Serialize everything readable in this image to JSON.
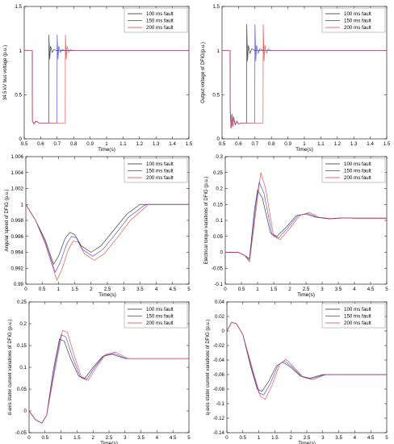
{
  "legend_labels": [
    "100 ms fault",
    "150 ms fault",
    "200 ms fault"
  ],
  "colors": {
    "series_100": "#222222",
    "series_150": "#3a3ad8",
    "series_200": "#e03a3a",
    "axes": "#000000",
    "legend_border": "#888888",
    "background": "#ffffff"
  },
  "chart_data": [
    {
      "id": "bus-voltage",
      "type": "line",
      "ylabel": "34.5 kV bus voltage (p.u.)",
      "xlabel": "Time(s)",
      "xlim": [
        0.5,
        1.5
      ],
      "ylim": [
        0,
        1.5
      ],
      "xticks": [
        0.5,
        0.6,
        0.7,
        0.8,
        0.9,
        1.0,
        1.1,
        1.2,
        1.3,
        1.4,
        1.5
      ],
      "xtick_labels": [
        "0.5",
        "0.6",
        "0.7",
        "0.8",
        "0.9",
        "1",
        "1.1",
        "1.2",
        "1.3",
        "1.4",
        "1.5"
      ],
      "yticks": [
        0,
        0.5,
        1,
        1.5
      ],
      "ytick_labels": [
        "0",
        "0.5",
        "1",
        "1.5"
      ],
      "legend": "top-right",
      "series": [
        {
          "name": "100 ms fault",
          "x": [
            0.5,
            0.549,
            0.55,
            0.56,
            0.57,
            0.59,
            0.62,
            0.649,
            0.65,
            0.655,
            0.66,
            0.67,
            0.68,
            0.7,
            0.8,
            1.0,
            1.5
          ],
          "y": [
            1.0,
            1.0,
            0.2,
            0.17,
            0.2,
            0.18,
            0.18,
            0.18,
            1.18,
            0.9,
            1.05,
            0.98,
            1.01,
            1.0,
            1.0,
            1.0,
            1.0
          ]
        },
        {
          "name": "150 ms fault",
          "x": [
            0.5,
            0.549,
            0.55,
            0.56,
            0.57,
            0.59,
            0.65,
            0.699,
            0.7,
            0.705,
            0.71,
            0.72,
            0.73,
            0.75,
            0.85,
            1.0,
            1.5
          ],
          "y": [
            1.0,
            1.0,
            0.2,
            0.17,
            0.2,
            0.18,
            0.18,
            0.18,
            1.18,
            0.9,
            1.05,
            0.98,
            1.01,
            1.0,
            1.0,
            1.0,
            1.0
          ]
        },
        {
          "name": "200 ms fault",
          "x": [
            0.5,
            0.549,
            0.55,
            0.56,
            0.57,
            0.59,
            0.7,
            0.749,
            0.75,
            0.755,
            0.76,
            0.77,
            0.78,
            0.8,
            0.9,
            1.0,
            1.5
          ],
          "y": [
            1.0,
            1.0,
            0.2,
            0.17,
            0.2,
            0.18,
            0.18,
            0.18,
            1.18,
            0.9,
            1.05,
            0.98,
            1.01,
            1.0,
            1.0,
            1.0,
            1.0
          ]
        }
      ]
    },
    {
      "id": "output-voltage",
      "type": "line",
      "ylabel": "Output voltage of DFIG(p.u.)",
      "xlabel": "Time(s)",
      "xlim": [
        0.5,
        1.5
      ],
      "ylim": [
        0,
        1.5
      ],
      "xticks": [
        0.5,
        0.6,
        0.7,
        0.8,
        0.9,
        1.0,
        1.1,
        1.2,
        1.3,
        1.4,
        1.5
      ],
      "xtick_labels": [
        "0.5",
        "0.6",
        "0.7",
        "0.8",
        "0.9",
        "1",
        "1.1",
        "1.2",
        "1.3",
        "1.4",
        "1.5"
      ],
      "yticks": [
        0,
        0.5,
        1,
        1.5
      ],
      "ytick_labels": [
        "0",
        "0.5",
        "1",
        "1.5"
      ],
      "legend": "top-right",
      "series": [
        {
          "name": "100 ms fault",
          "x": [
            0.5,
            0.549,
            0.55,
            0.555,
            0.56,
            0.565,
            0.57,
            0.58,
            0.59,
            0.6,
            0.62,
            0.649,
            0.65,
            0.655,
            0.66,
            0.67,
            0.68,
            0.7,
            0.8,
            1.5
          ],
          "y": [
            1.0,
            1.0,
            0.3,
            0.12,
            0.28,
            0.14,
            0.25,
            0.16,
            0.2,
            0.17,
            0.18,
            0.18,
            1.3,
            0.88,
            1.06,
            0.97,
            1.02,
            1.0,
            1.0,
            1.0
          ]
        },
        {
          "name": "150 ms fault",
          "x": [
            0.5,
            0.549,
            0.55,
            0.555,
            0.56,
            0.565,
            0.57,
            0.58,
            0.59,
            0.6,
            0.62,
            0.699,
            0.7,
            0.705,
            0.71,
            0.72,
            0.73,
            0.75,
            0.85,
            1.5
          ],
          "y": [
            1.0,
            1.0,
            0.3,
            0.12,
            0.28,
            0.14,
            0.25,
            0.16,
            0.2,
            0.17,
            0.18,
            0.18,
            1.3,
            0.88,
            1.06,
            0.97,
            1.02,
            1.0,
            1.0,
            1.0
          ]
        },
        {
          "name": "200 ms fault",
          "x": [
            0.5,
            0.549,
            0.55,
            0.555,
            0.56,
            0.565,
            0.57,
            0.58,
            0.59,
            0.6,
            0.62,
            0.749,
            0.75,
            0.755,
            0.76,
            0.77,
            0.78,
            0.8,
            0.9,
            1.5
          ],
          "y": [
            1.0,
            1.0,
            0.3,
            0.12,
            0.28,
            0.14,
            0.25,
            0.16,
            0.2,
            0.17,
            0.18,
            0.18,
            1.3,
            0.88,
            1.06,
            0.97,
            1.02,
            1.0,
            1.0,
            1.0
          ]
        }
      ]
    },
    {
      "id": "angular-speed",
      "type": "line",
      "ylabel": "Angular speed of DFIG (p.u.)",
      "xlabel": "Time(s)",
      "xlim": [
        0,
        5
      ],
      "ylim": [
        0.99,
        1.006
      ],
      "xticks": [
        0,
        0.5,
        1,
        1.5,
        2,
        2.5,
        3,
        3.5,
        4,
        4.5,
        5
      ],
      "xtick_labels": [
        "0",
        "0.5",
        "1",
        "1.5",
        "2",
        "2.5",
        "3",
        "3.5",
        "4",
        "4.5",
        "5"
      ],
      "yticks": [
        0.99,
        0.992,
        0.994,
        0.996,
        0.998,
        1.0,
        1.002,
        1.004,
        1.006
      ],
      "ytick_labels": [
        "0.99",
        "0.992",
        "0.994",
        "0.996",
        "0.998",
        "1",
        "1.002",
        "1.004",
        "1.006"
      ],
      "legend": "top-right",
      "series": [
        {
          "name": "100 ms fault",
          "x": [
            0,
            0.3,
            0.6,
            0.85,
            1.0,
            1.2,
            1.35,
            1.5,
            1.7,
            2.0,
            2.3,
            2.7,
            3.1,
            3.5,
            3.6,
            4.0,
            5.0
          ],
          "y": [
            1.0,
            0.998,
            0.9955,
            0.9925,
            0.9935,
            0.9957,
            0.9965,
            0.9962,
            0.9948,
            0.994,
            0.9948,
            0.9968,
            0.9988,
            1.0,
            1.0,
            1.0,
            1.0
          ]
        },
        {
          "name": "150 ms fault",
          "x": [
            0,
            0.3,
            0.6,
            0.9,
            1.05,
            1.25,
            1.4,
            1.55,
            1.75,
            2.05,
            2.35,
            2.75,
            3.15,
            3.6,
            3.7,
            4.0,
            5.0
          ],
          "y": [
            1.0,
            0.998,
            0.9952,
            0.9915,
            0.9927,
            0.995,
            0.996,
            0.9958,
            0.9943,
            0.9935,
            0.9943,
            0.9963,
            0.9984,
            0.9998,
            1.0,
            1.0,
            1.0
          ]
        },
        {
          "name": "200 ms fault",
          "x": [
            0,
            0.3,
            0.6,
            0.95,
            1.1,
            1.3,
            1.45,
            1.6,
            1.8,
            2.1,
            2.4,
            2.8,
            3.2,
            3.65,
            3.75,
            4.0,
            5.0
          ],
          "y": [
            1.0,
            0.998,
            0.995,
            0.9905,
            0.9918,
            0.9943,
            0.9954,
            0.9953,
            0.9938,
            0.993,
            0.9938,
            0.9958,
            0.998,
            0.9996,
            1.0,
            1.0,
            1.0
          ]
        }
      ]
    },
    {
      "id": "electrical-torque",
      "type": "line",
      "ylabel": "Electrical torque variations of DFIG (p.u.)",
      "xlabel": "Time(s)",
      "xlim": [
        0,
        5
      ],
      "ylim": [
        -0.1,
        0.3
      ],
      "xticks": [
        0,
        0.5,
        1,
        1.5,
        2,
        2.5,
        3,
        3.5,
        4,
        4.5,
        5
      ],
      "xtick_labels": [
        "0",
        "0.5",
        "1",
        "1.5",
        "2",
        "2.5",
        "3",
        "3.5",
        "4",
        "4.5",
        "5"
      ],
      "yticks": [
        -0.1,
        -0.05,
        0,
        0.05,
        0.1,
        0.15,
        0.2,
        0.25,
        0.3
      ],
      "ytick_labels": [
        "-0.1",
        "-0.05",
        "0",
        "0.05",
        "0.1",
        "0.15",
        "0.2",
        "0.25",
        "0.3"
      ],
      "legend": "top-right",
      "series": [
        {
          "name": "100 ms fault",
          "x": [
            0,
            0.4,
            0.6,
            0.75,
            0.9,
            1.0,
            1.15,
            1.4,
            1.6,
            1.9,
            2.2,
            2.5,
            2.8,
            3.2,
            3.6,
            4.0,
            5.0
          ],
          "y": [
            0.0,
            0.0,
            -0.01,
            -0.02,
            0.13,
            0.195,
            0.17,
            0.06,
            0.05,
            0.08,
            0.115,
            0.12,
            0.11,
            0.105,
            0.108,
            0.107,
            0.107
          ]
        },
        {
          "name": "150 ms fault",
          "x": [
            0,
            0.4,
            0.6,
            0.75,
            0.95,
            1.05,
            1.2,
            1.45,
            1.65,
            1.95,
            2.25,
            2.55,
            2.85,
            3.25,
            3.65,
            4.0,
            5.0
          ],
          "y": [
            0.0,
            0.0,
            -0.01,
            -0.025,
            0.15,
            0.22,
            0.185,
            0.055,
            0.045,
            0.078,
            0.115,
            0.122,
            0.11,
            0.105,
            0.108,
            0.107,
            0.107
          ]
        },
        {
          "name": "200 ms fault",
          "x": [
            0,
            0.4,
            0.6,
            0.75,
            1.0,
            1.1,
            1.25,
            1.5,
            1.7,
            2.0,
            2.3,
            2.6,
            2.9,
            3.3,
            3.7,
            4.0,
            5.0
          ],
          "y": [
            0.0,
            0.0,
            -0.01,
            -0.03,
            0.17,
            0.25,
            0.2,
            0.05,
            0.04,
            0.075,
            0.115,
            0.125,
            0.11,
            0.105,
            0.108,
            0.107,
            0.107
          ]
        }
      ]
    },
    {
      "id": "d-axis-current",
      "type": "line",
      "ylabel": "d-axis stator current variations of DFIG (p.u.)",
      "xlabel": "Time(s)",
      "xlim": [
        0,
        5
      ],
      "ylim": [
        -0.05,
        0.25
      ],
      "xticks": [
        0,
        0.5,
        1,
        1.5,
        2,
        2.5,
        3,
        3.5,
        4,
        4.5,
        5
      ],
      "xtick_labels": [
        "0",
        "0.5",
        "1",
        "1.5",
        "2",
        "2.5",
        "3",
        "3.5",
        "4",
        "4.5",
        "5"
      ],
      "yticks": [
        -0.05,
        0,
        0.05,
        0.1,
        0.15,
        0.2,
        0.25
      ],
      "ytick_labels": [
        "-0.05",
        "0",
        "0.05",
        "0.1",
        "0.15",
        "0.2",
        "0.25"
      ],
      "legend": "top-right",
      "series": [
        {
          "name": "100 ms fault",
          "x": [
            0,
            0.2,
            0.4,
            0.55,
            0.75,
            0.95,
            1.1,
            1.3,
            1.55,
            1.75,
            2.0,
            2.3,
            2.6,
            3.0,
            3.5,
            4.0,
            5.0
          ],
          "y": [
            0.0,
            -0.02,
            -0.028,
            -0.01,
            0.09,
            0.165,
            0.16,
            0.12,
            0.08,
            0.075,
            0.1,
            0.125,
            0.13,
            0.12,
            0.12,
            0.12,
            0.12
          ]
        },
        {
          "name": "150 ms fault",
          "x": [
            0,
            0.2,
            0.4,
            0.55,
            0.8,
            1.0,
            1.15,
            1.35,
            1.6,
            1.8,
            2.05,
            2.35,
            2.65,
            3.05,
            3.5,
            4.0,
            5.0
          ],
          "y": [
            0.0,
            -0.02,
            -0.028,
            -0.01,
            0.1,
            0.175,
            0.17,
            0.125,
            0.078,
            0.072,
            0.1,
            0.127,
            0.132,
            0.12,
            0.12,
            0.12,
            0.12
          ]
        },
        {
          "name": "200 ms fault",
          "x": [
            0,
            0.2,
            0.4,
            0.55,
            0.85,
            1.05,
            1.2,
            1.4,
            1.65,
            1.85,
            2.1,
            2.4,
            2.7,
            3.1,
            3.5,
            4.0,
            5.0
          ],
          "y": [
            0.0,
            -0.02,
            -0.028,
            -0.01,
            0.11,
            0.185,
            0.18,
            0.13,
            0.075,
            0.07,
            0.1,
            0.13,
            0.135,
            0.12,
            0.12,
            0.12,
            0.12
          ]
        }
      ]
    },
    {
      "id": "q-axis-current",
      "type": "line",
      "ylabel": "q-axis stator current variations of DFIG (p.u.)",
      "xlabel": "Time(s)",
      "xlim": [
        0,
        5
      ],
      "ylim": [
        -0.14,
        0.04
      ],
      "xticks": [
        0,
        0.5,
        1,
        1.5,
        2,
        2.5,
        3,
        3.5,
        4,
        4.5,
        5
      ],
      "xtick_labels": [
        "0",
        "0.5",
        "1",
        "1.5",
        "2",
        "2.5",
        "3",
        "3.5",
        "4",
        "4.5",
        "5"
      ],
      "yticks": [
        -0.14,
        -0.12,
        -0.1,
        -0.08,
        -0.06,
        -0.04,
        -0.02,
        0,
        0.02,
        0.04
      ],
      "ytick_labels": [
        "-0.14",
        "-0.12",
        "-0.1",
        "-0.08",
        "-0.06",
        "-0.04",
        "-0.02",
        "0",
        "0.02",
        "0.04"
      ],
      "legend": "top-right",
      "series": [
        {
          "name": "100 ms fault",
          "x": [
            0,
            0.15,
            0.3,
            0.5,
            0.75,
            0.95,
            1.1,
            1.3,
            1.55,
            1.75,
            2.0,
            2.3,
            2.6,
            3.0,
            3.5,
            4.0,
            5.0
          ],
          "y": [
            0.0,
            0.012,
            0.01,
            -0.005,
            -0.05,
            -0.08,
            -0.083,
            -0.07,
            -0.048,
            -0.043,
            -0.05,
            -0.062,
            -0.065,
            -0.06,
            -0.06,
            -0.06,
            -0.06
          ]
        },
        {
          "name": "150 ms fault",
          "x": [
            0,
            0.15,
            0.3,
            0.5,
            0.8,
            1.0,
            1.15,
            1.35,
            1.6,
            1.8,
            2.05,
            2.35,
            2.65,
            3.05,
            3.5,
            4.0,
            5.0
          ],
          "y": [
            0.0,
            0.012,
            0.01,
            -0.005,
            -0.055,
            -0.085,
            -0.088,
            -0.073,
            -0.047,
            -0.041,
            -0.05,
            -0.063,
            -0.066,
            -0.06,
            -0.06,
            -0.06,
            -0.06
          ]
        },
        {
          "name": "200 ms fault",
          "x": [
            0,
            0.15,
            0.3,
            0.5,
            0.85,
            1.05,
            1.2,
            1.4,
            1.65,
            1.85,
            2.1,
            2.4,
            2.7,
            3.1,
            3.5,
            4.0,
            5.0
          ],
          "y": [
            0.0,
            0.012,
            0.01,
            -0.005,
            -0.06,
            -0.09,
            -0.094,
            -0.076,
            -0.046,
            -0.039,
            -0.05,
            -0.064,
            -0.067,
            -0.06,
            -0.06,
            -0.06,
            -0.06
          ]
        }
      ]
    }
  ]
}
